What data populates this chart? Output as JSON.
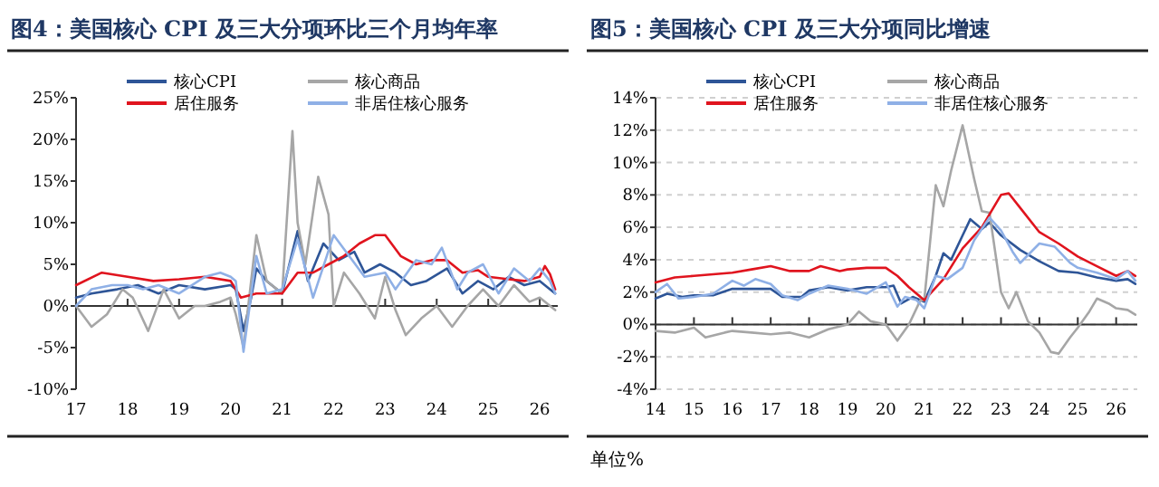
{
  "chart_data": [
    {
      "type": "line",
      "title": "图4：美国核心 CPI 及三大分项环比三个月均年率",
      "legend": "top",
      "xlim": [
        2017,
        2026.35
      ],
      "xticks": [
        {
          "value": 2017,
          "label": "17"
        },
        {
          "value": 2018,
          "label": "18"
        },
        {
          "value": 2019,
          "label": "19"
        },
        {
          "value": 2020,
          "label": "20"
        },
        {
          "value": 2021,
          "label": "21"
        },
        {
          "value": 2022,
          "label": "22"
        },
        {
          "value": 2023,
          "label": "23"
        },
        {
          "value": 2024,
          "label": "24"
        },
        {
          "value": 2025,
          "label": "25"
        },
        {
          "value": 2026,
          "label": "26"
        }
      ],
      "ylim": [
        -10,
        25
      ],
      "yticks": [
        {
          "value": -10,
          "label": "-10%"
        },
        {
          "value": -5,
          "label": "-5%"
        },
        {
          "value": 0,
          "label": "0%"
        },
        {
          "value": 5,
          "label": "5%"
        },
        {
          "value": 10,
          "label": "10%"
        },
        {
          "value": 15,
          "label": "15%"
        },
        {
          "value": 20,
          "label": "20%"
        },
        {
          "value": 25,
          "label": "25%"
        }
      ],
      "series": [
        {
          "name": "核心CPI",
          "color": "#2e5597",
          "x": [
            2017,
            2017.3,
            2017.8,
            2018.2,
            2018.6,
            2019,
            2019.5,
            2020,
            2020.1,
            2020.25,
            2020.4,
            2020.5,
            2020.7,
            2021,
            2021.3,
            2021.5,
            2021.8,
            2022.1,
            2022.4,
            2022.6,
            2022.9,
            2023.2,
            2023.5,
            2023.8,
            2024.2,
            2024.5,
            2024.8,
            2025.1,
            2025.4,
            2025.7,
            2026,
            2026.3
          ],
          "values": [
            1,
            1.5,
            2,
            2.5,
            1.5,
            2.5,
            2,
            2.5,
            2,
            -3,
            1,
            4.5,
            3,
            1.5,
            9,
            3,
            7.5,
            5.5,
            6.5,
            4,
            5,
            4,
            2.5,
            3,
            4.5,
            1.5,
            3,
            2,
            3.5,
            2.5,
            3,
            1.5
          ]
        },
        {
          "name": "核心商品",
          "color": "#a6a6a6",
          "x": [
            2017,
            2017.3,
            2017.6,
            2017.9,
            2018.1,
            2018.4,
            2018.7,
            2019,
            2019.3,
            2019.5,
            2019.8,
            2020,
            2020.1,
            2020.25,
            2020.5,
            2020.7,
            2020.9,
            2021,
            2021.2,
            2021.3,
            2021.45,
            2021.7,
            2021.9,
            2022,
            2022.2,
            2022.5,
            2022.8,
            2023,
            2023.2,
            2023.4,
            2023.7,
            2024,
            2024.3,
            2024.6,
            2024.9,
            2025.2,
            2025.5,
            2025.8,
            2026,
            2026.3
          ],
          "values": [
            0,
            -2.5,
            -1,
            2,
            1,
            -3,
            2,
            -1.5,
            0,
            0,
            0.5,
            1,
            -1,
            -5,
            8.5,
            3,
            2,
            1.5,
            21,
            10,
            5,
            15.5,
            11,
            0,
            4,
            1.5,
            -1.5,
            3.5,
            -0.5,
            -3.5,
            -1.5,
            0,
            -2.5,
            0,
            2,
            0,
            2.5,
            0.5,
            1,
            -0.5
          ]
        },
        {
          "name": "居住服务",
          "color": "#e0141e",
          "x": [
            2017,
            2017.5,
            2018,
            2018.5,
            2019,
            2019.5,
            2020,
            2020.2,
            2020.5,
            2020.8,
            2021,
            2021.3,
            2021.6,
            2021.9,
            2022.2,
            2022.5,
            2022.8,
            2023,
            2023.3,
            2023.6,
            2023.9,
            2024.2,
            2024.5,
            2024.8,
            2025,
            2025.4,
            2025.7,
            2026,
            2026.1,
            2026.2,
            2026.3
          ],
          "values": [
            2.5,
            4,
            3.5,
            3,
            3.2,
            3.5,
            3,
            1,
            1.5,
            1.5,
            1.5,
            4,
            4,
            5,
            6,
            7.5,
            8.5,
            8.5,
            6,
            5,
            5.5,
            5.5,
            4,
            4.3,
            3.5,
            3.2,
            3,
            3.5,
            4.8,
            3.8,
            2
          ]
        },
        {
          "name": "非居住核心服务",
          "color": "#8fb0e6",
          "x": [
            2017,
            2017.3,
            2017.7,
            2018,
            2018.3,
            2018.6,
            2019,
            2019.5,
            2019.8,
            2020,
            2020.1,
            2020.25,
            2020.5,
            2020.7,
            2021,
            2021.3,
            2021.6,
            2022,
            2022.3,
            2022.6,
            2023,
            2023.2,
            2023.6,
            2023.9,
            2024.1,
            2024.4,
            2024.6,
            2024.9,
            2025.2,
            2025.5,
            2025.8,
            2026,
            2026.2,
            2026.3
          ],
          "values": [
            0,
            2,
            2.5,
            2.5,
            2,
            2.5,
            1.5,
            3.5,
            4,
            3.5,
            3,
            -5.5,
            6,
            1.5,
            2,
            8,
            1,
            8.5,
            6,
            3.5,
            4,
            2,
            5.5,
            5,
            7,
            2,
            4,
            5,
            1.5,
            4.5,
            3,
            4.5,
            3,
            1.5
          ]
        }
      ]
    },
    {
      "type": "line",
      "title": "图5：美国核心 CPI 及三大分项同比增速",
      "legend": "top",
      "grid": "y",
      "annotations": [
        "单位%"
      ],
      "xlim": [
        2014,
        2026.55
      ],
      "xticks": [
        {
          "value": 2014,
          "label": "14"
        },
        {
          "value": 2015,
          "label": "15"
        },
        {
          "value": 2016,
          "label": "16"
        },
        {
          "value": 2017,
          "label": "17"
        },
        {
          "value": 2018,
          "label": "18"
        },
        {
          "value": 2019,
          "label": "19"
        },
        {
          "value": 2020,
          "label": "20"
        },
        {
          "value": 2021,
          "label": "21"
        },
        {
          "value": 2022,
          "label": "22"
        },
        {
          "value": 2023,
          "label": "23"
        },
        {
          "value": 2024,
          "label": "24"
        },
        {
          "value": 2025,
          "label": "25"
        },
        {
          "value": 2026,
          "label": "26"
        }
      ],
      "ylim": [
        -4,
        14
      ],
      "yticks": [
        {
          "value": -4,
          "label": "-4%"
        },
        {
          "value": -2,
          "label": "-2%"
        },
        {
          "value": 0,
          "label": "0%"
        },
        {
          "value": 2,
          "label": "2%"
        },
        {
          "value": 4,
          "label": "4%"
        },
        {
          "value": 6,
          "label": "6%"
        },
        {
          "value": 8,
          "label": "8%"
        },
        {
          "value": 10,
          "label": "10%"
        },
        {
          "value": 12,
          "label": "12%"
        },
        {
          "value": 14,
          "label": "14%"
        }
      ],
      "series": [
        {
          "name": "核心CPI",
          "color": "#2e5597",
          "x": [
            2014,
            2014.3,
            2014.7,
            2015,
            2015.5,
            2016,
            2016.5,
            2017,
            2017.3,
            2017.8,
            2018,
            2018.5,
            2019,
            2019.5,
            2020,
            2020.2,
            2020.4,
            2020.7,
            2021,
            2021.3,
            2021.5,
            2021.7,
            2022,
            2022.2,
            2022.5,
            2022.7,
            2023,
            2023.5,
            2024,
            2024.5,
            2025,
            2025.5,
            2026,
            2026.3,
            2026.5
          ],
          "values": [
            1.6,
            1.9,
            1.7,
            1.8,
            1.8,
            2.2,
            2.2,
            2.2,
            1.7,
            1.7,
            2.1,
            2.3,
            2.1,
            2.3,
            2.3,
            2.4,
            1.3,
            1.7,
            1.4,
            3.0,
            4.4,
            4.0,
            5.5,
            6.5,
            5.9,
            6.3,
            5.5,
            4.6,
            3.9,
            3.3,
            3.2,
            2.9,
            2.7,
            2.8,
            2.5
          ]
        },
        {
          "name": "核心商品",
          "color": "#a6a6a6",
          "x": [
            2014,
            2014.5,
            2015,
            2015.3,
            2015.8,
            2016,
            2016.5,
            2017,
            2017.5,
            2018,
            2018.5,
            2019,
            2019.3,
            2019.6,
            2020,
            2020.3,
            2020.6,
            2020.9,
            2021,
            2021.3,
            2021.5,
            2021.7,
            2022,
            2022.3,
            2022.5,
            2022.7,
            2023,
            2023.2,
            2023.4,
            2023.7,
            2024,
            2024.3,
            2024.5,
            2024.8,
            2025,
            2025.3,
            2025.5,
            2025.8,
            2026,
            2026.3,
            2026.5
          ],
          "values": [
            -0.4,
            -0.5,
            -0.2,
            -0.8,
            -0.5,
            -0.4,
            -0.5,
            -0.6,
            -0.5,
            -0.8,
            -0.3,
            0,
            0.8,
            0.2,
            0,
            -1,
            0,
            1.5,
            1.5,
            8.6,
            7.3,
            9.5,
            12.3,
            9,
            7,
            6.9,
            2,
            1,
            2,
            0.2,
            -0.5,
            -1.7,
            -1.8,
            -0.8,
            -0.2,
            0.8,
            1.6,
            1.3,
            1,
            0.9,
            0.6
          ]
        },
        {
          "name": "居住服务",
          "color": "#e0141e",
          "x": [
            2014,
            2014.5,
            2015,
            2015.5,
            2016,
            2016.5,
            2017,
            2017.5,
            2018,
            2018.3,
            2018.8,
            2019,
            2019.5,
            2020,
            2020.3,
            2020.6,
            2021,
            2021.5,
            2022,
            2022.5,
            2022.8,
            2023,
            2023.2,
            2023.5,
            2024,
            2024.5,
            2025,
            2025.5,
            2026,
            2026.3,
            2026.5
          ],
          "values": [
            2.6,
            2.9,
            3,
            3.1,
            3.2,
            3.4,
            3.6,
            3.3,
            3.3,
            3.6,
            3.3,
            3.4,
            3.5,
            3.5,
            3,
            2.3,
            1.5,
            2.8,
            4.7,
            6,
            7.2,
            8,
            8.1,
            7.2,
            5.7,
            5,
            4.2,
            3.6,
            3,
            3.3,
            3
          ]
        },
        {
          "name": "非居住核心服务",
          "color": "#8fb0e6",
          "x": [
            2014,
            2014.3,
            2014.6,
            2015,
            2015.5,
            2016,
            2016.3,
            2016.6,
            2017,
            2017.3,
            2017.7,
            2018,
            2018.5,
            2019,
            2019.5,
            2020,
            2020.3,
            2020.5,
            2020.8,
            2021,
            2021.3,
            2021.6,
            2022,
            2022.3,
            2022.7,
            2023,
            2023.3,
            2023.5,
            2024,
            2024.4,
            2024.8,
            2025,
            2025.5,
            2026,
            2026.3,
            2026.5
          ],
          "values": [
            2,
            2.5,
            1.6,
            1.7,
            1.9,
            2.7,
            2.4,
            2.8,
            2.5,
            1.8,
            1.5,
            1.9,
            2.4,
            2.2,
            1.9,
            2.6,
            1.1,
            1.7,
            1.5,
            1,
            3,
            2.8,
            3.5,
            5.2,
            6.6,
            5.8,
            4.5,
            3.8,
            5,
            4.8,
            3.8,
            3.5,
            3.2,
            2.8,
            3.3,
            2.7
          ]
        }
      ]
    }
  ]
}
